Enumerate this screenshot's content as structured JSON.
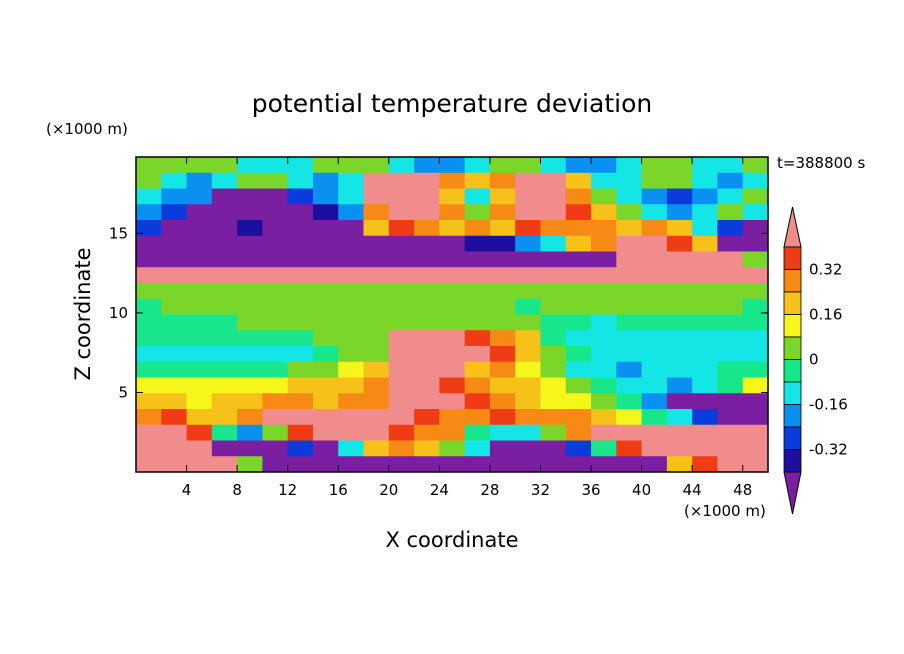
{
  "chart_data": {
    "type": "heatmap",
    "title": "potential temperature deviation",
    "time_label": "t=388800 s",
    "xlabel": "X coordinate",
    "ylabel": "Z coordinate",
    "x_unit": "(×1000 m)",
    "y_unit": "(×1000 m)",
    "xlim": [
      0,
      50
    ],
    "ylim": [
      0,
      19.8
    ],
    "x_ticks": [
      4,
      8,
      12,
      16,
      20,
      24,
      28,
      32,
      36,
      40,
      44,
      48
    ],
    "y_ticks": [
      5,
      10,
      15
    ],
    "colorbar": {
      "levels": [
        -0.48,
        -0.4,
        -0.32,
        -0.24,
        -0.16,
        -0.08,
        0,
        0.08,
        0.16,
        0.24,
        0.32,
        0.4
      ],
      "labeled_levels": [
        0.32,
        0.16,
        0,
        -0.16,
        -0.32
      ],
      "colors": [
        "#7a1fa2",
        "#1c0fa0",
        "#0a3cdc",
        "#0a90f0",
        "#14e6e6",
        "#18e68a",
        "#7ad628",
        "#f6f61a",
        "#f6c21a",
        "#f68a14",
        "#f03c14",
        "#f08c8c"
      ],
      "extend": "both"
    },
    "field": {
      "z_rows": [
        [
          6,
          6,
          6,
          6,
          4,
          4,
          4,
          6,
          6,
          6,
          4,
          3,
          3,
          4,
          6,
          6,
          4,
          3,
          3,
          4,
          6,
          6,
          4,
          4,
          6
        ],
        [
          6,
          4,
          3,
          4,
          6,
          6,
          4,
          3,
          4,
          11,
          11,
          11,
          9,
          8,
          9,
          11,
          11,
          8,
          4,
          4,
          6,
          6,
          4,
          3,
          4
        ],
        [
          4,
          3,
          3,
          0,
          0,
          0,
          2,
          3,
          4,
          11,
          11,
          11,
          8,
          4,
          8,
          11,
          11,
          9,
          6,
          4,
          3,
          2,
          3,
          4,
          6
        ],
        [
          3,
          2,
          0,
          0,
          0,
          0,
          0,
          1,
          3,
          9,
          11,
          11,
          9,
          6,
          9,
          11,
          11,
          10,
          8,
          6,
          4,
          3,
          4,
          6,
          4
        ],
        [
          2,
          0,
          0,
          0,
          1,
          0,
          0,
          0,
          0,
          8,
          10,
          9,
          8,
          9,
          8,
          10,
          9,
          9,
          9,
          8,
          9,
          8,
          4,
          2,
          0
        ],
        [
          0,
          0,
          0,
          0,
          0,
          0,
          0,
          0,
          0,
          0,
          0,
          0,
          0,
          1,
          1,
          3,
          4,
          8,
          9,
          11,
          11,
          10,
          8,
          0,
          0
        ],
        [
          0,
          0,
          0,
          0,
          0,
          0,
          0,
          0,
          0,
          0,
          0,
          0,
          0,
          0,
          0,
          0,
          0,
          0,
          0,
          11,
          11,
          11,
          11,
          11,
          6
        ],
        [
          11,
          11,
          11,
          11,
          11,
          11,
          11,
          11,
          11,
          11,
          11,
          11,
          11,
          11,
          11,
          11,
          11,
          11,
          11,
          11,
          11,
          11,
          11,
          11,
          11
        ],
        [
          6,
          6,
          6,
          6,
          6,
          6,
          6,
          6,
          6,
          6,
          6,
          6,
          6,
          6,
          6,
          6,
          6,
          6,
          6,
          6,
          6,
          6,
          6,
          6,
          6
        ],
        [
          5,
          6,
          6,
          6,
          6,
          6,
          6,
          6,
          6,
          6,
          6,
          6,
          6,
          6,
          6,
          5,
          6,
          6,
          6,
          6,
          6,
          6,
          6,
          6,
          5
        ],
        [
          5,
          5,
          5,
          5,
          6,
          6,
          6,
          6,
          6,
          6,
          6,
          6,
          6,
          6,
          6,
          6,
          5,
          5,
          4,
          5,
          5,
          5,
          5,
          5,
          5
        ],
        [
          5,
          5,
          5,
          5,
          5,
          5,
          5,
          6,
          6,
          6,
          11,
          11,
          11,
          10,
          9,
          8,
          5,
          4,
          4,
          4,
          4,
          4,
          4,
          4,
          4
        ],
        [
          4,
          4,
          4,
          4,
          4,
          4,
          4,
          5,
          6,
          6,
          11,
          11,
          11,
          11,
          10,
          8,
          6,
          5,
          4,
          4,
          4,
          4,
          4,
          4,
          4
        ],
        [
          5,
          5,
          5,
          5,
          5,
          5,
          6,
          6,
          7,
          8,
          11,
          11,
          11,
          8,
          9,
          7,
          6,
          4,
          4,
          3,
          4,
          4,
          4,
          5,
          5
        ],
        [
          7,
          7,
          7,
          7,
          7,
          7,
          8,
          8,
          8,
          9,
          11,
          11,
          10,
          9,
          8,
          8,
          7,
          6,
          5,
          4,
          4,
          3,
          4,
          5,
          7
        ],
        [
          8,
          8,
          7,
          8,
          8,
          9,
          9,
          8,
          9,
          9,
          11,
          11,
          11,
          10,
          9,
          8,
          7,
          7,
          6,
          5,
          3,
          0,
          0,
          0,
          0
        ],
        [
          9,
          10,
          8,
          8,
          9,
          11,
          11,
          11,
          11,
          11,
          11,
          10,
          9,
          9,
          10,
          9,
          9,
          9,
          8,
          7,
          5,
          4,
          2,
          0,
          0
        ],
        [
          11,
          11,
          10,
          5,
          3,
          6,
          10,
          11,
          11,
          11,
          10,
          9,
          9,
          5,
          4,
          4,
          6,
          9,
          11,
          11,
          11,
          11,
          11,
          11,
          11
        ],
        [
          11,
          11,
          11,
          0,
          0,
          0,
          2,
          0,
          4,
          8,
          9,
          8,
          6,
          4,
          0,
          0,
          0,
          2,
          5,
          10,
          11,
          11,
          11,
          11,
          11
        ],
        [
          11,
          11,
          11,
          11,
          6,
          0,
          0,
          0,
          0,
          0,
          0,
          0,
          0,
          0,
          0,
          0,
          0,
          0,
          0,
          0,
          0,
          8,
          10,
          11,
          11
        ]
      ]
    }
  }
}
